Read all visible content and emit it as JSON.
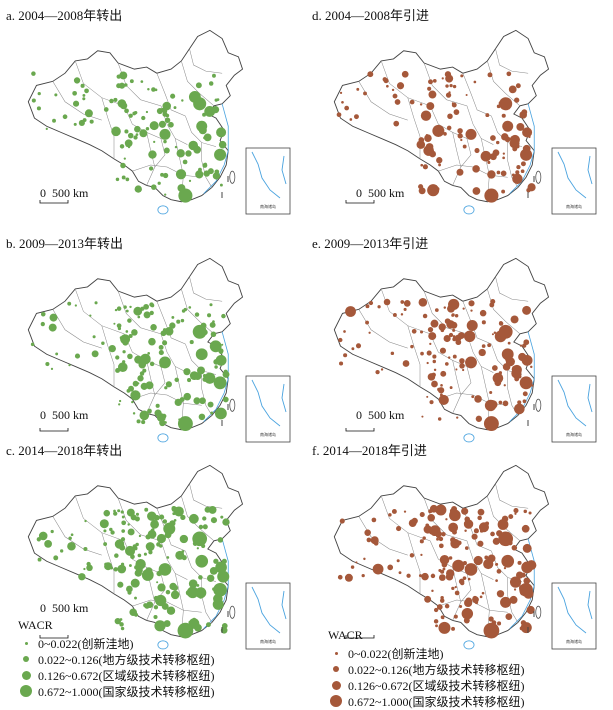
{
  "colors": {
    "outflow": "#6aa84f",
    "inflow": "#a5583a",
    "border": "#444444",
    "water": "#4aa3df"
  },
  "scale_label": "500 km",
  "scale_zero": "0",
  "inset_label": "南海诸岛",
  "panels": [
    {
      "id": "a",
      "title": "a. 2004—2008年转出",
      "kind": "outflow"
    },
    {
      "id": "b",
      "title": "b. 2009—2013年转出",
      "kind": "outflow"
    },
    {
      "id": "c",
      "title": "c. 2014—2018年转出",
      "kind": "outflow"
    },
    {
      "id": "d",
      "title": "d. 2004—2008年引进",
      "kind": "inflow"
    },
    {
      "id": "e",
      "title": "e. 2009—2013年引进",
      "kind": "inflow"
    },
    {
      "id": "f",
      "title": "f. 2014—2018年引进",
      "kind": "inflow"
    }
  ],
  "legend": {
    "title": "WACR",
    "items": [
      {
        "label": "0~0.022(创新洼地)"
      },
      {
        "label": "0.022~0.126(地方级技术转移枢纽)"
      },
      {
        "label": "0.126~0.672(区域级技术转移枢纽)"
      },
      {
        "label": "0.672~1.000(国家级技术转移枢纽)"
      }
    ]
  }
}
